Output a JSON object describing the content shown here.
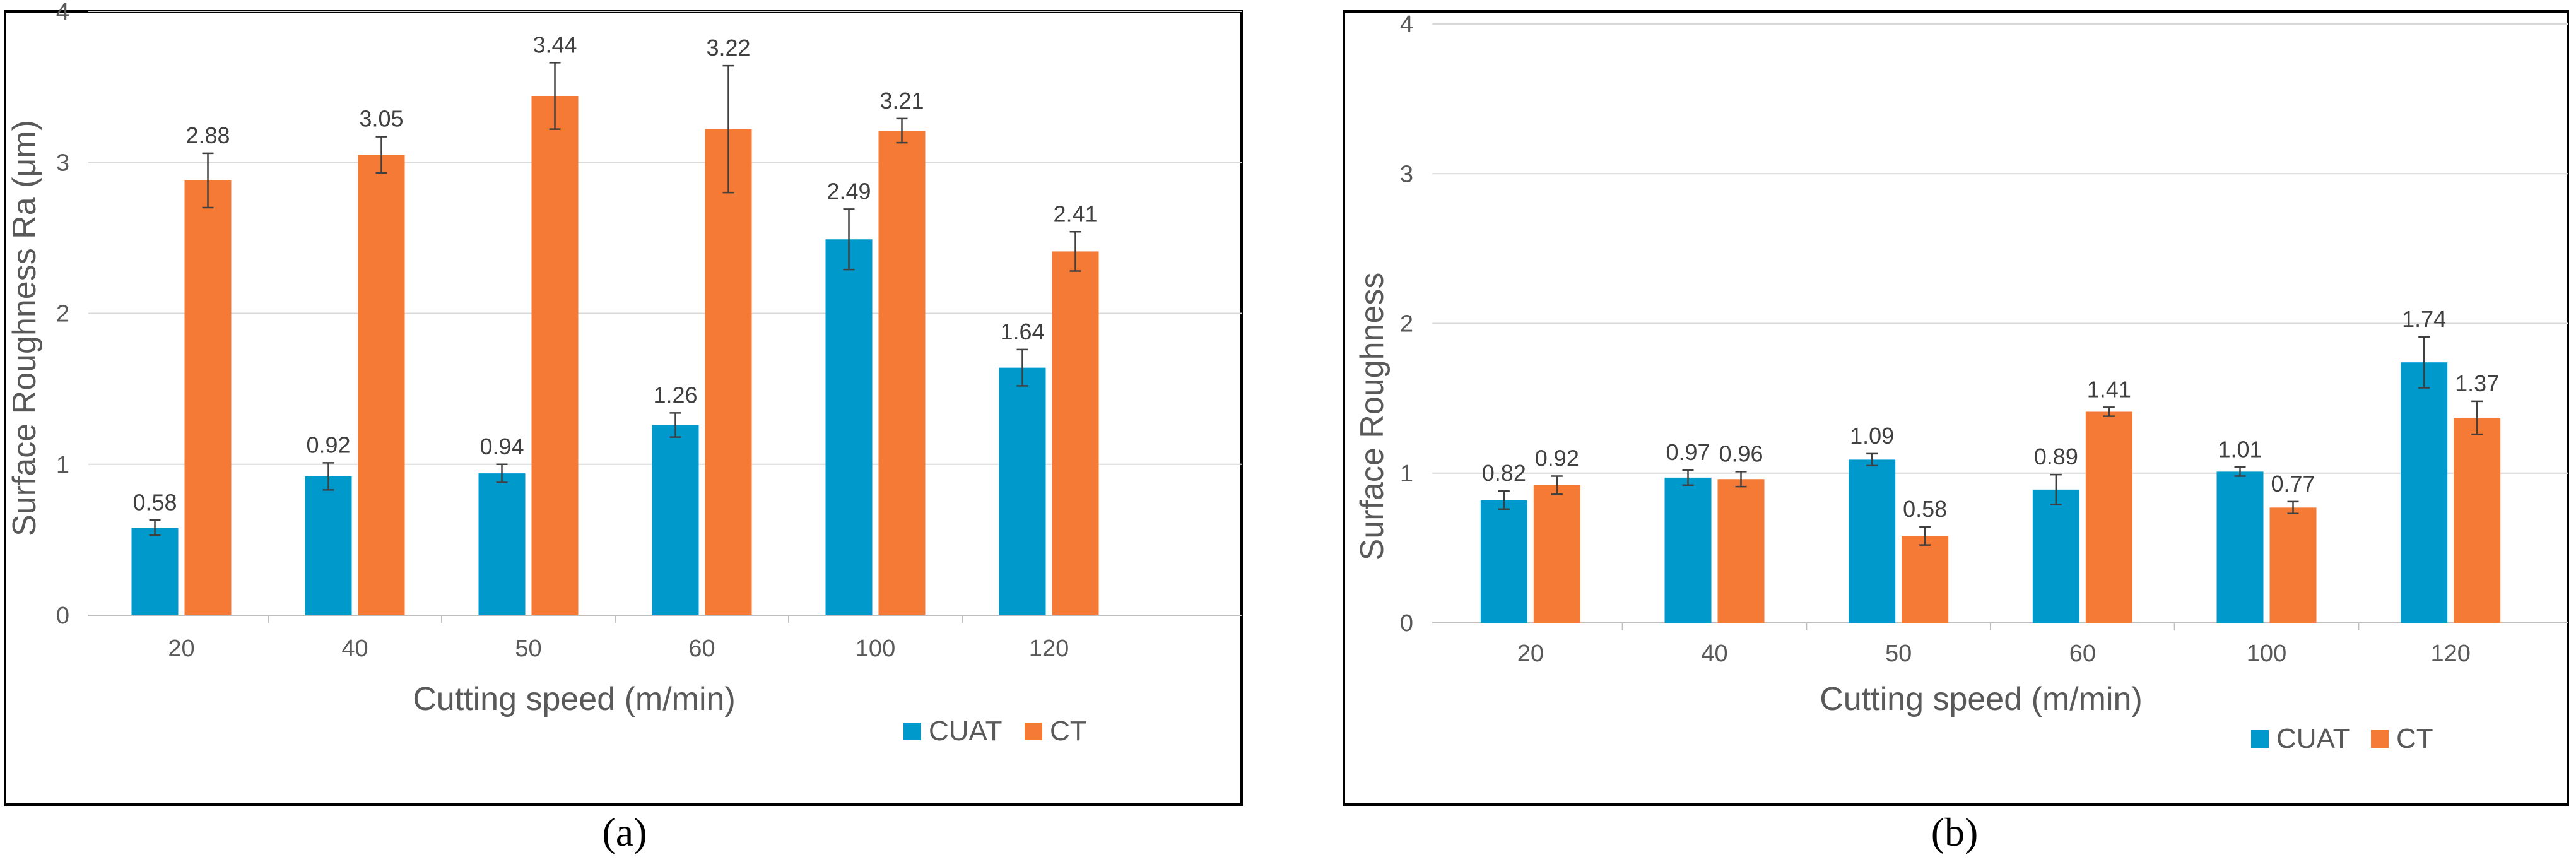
{
  "chart_data": [
    {
      "type": "bar",
      "panel_label": "(a)",
      "categories": [
        "20",
        "40",
        "50",
        "60",
        "100",
        "120"
      ],
      "series": [
        {
          "name": "CUAT",
          "color": "#0099CC",
          "values": [
            0.58,
            0.92,
            0.94,
            1.26,
            2.49,
            1.64
          ],
          "errors": [
            0.05,
            0.09,
            0.06,
            0.08,
            0.2,
            0.12
          ]
        },
        {
          "name": "CT",
          "color": "#F47A35",
          "values": [
            2.88,
            3.05,
            3.44,
            3.22,
            3.21,
            2.41
          ],
          "errors": [
            0.18,
            0.12,
            0.22,
            0.42,
            0.08,
            0.13
          ]
        }
      ],
      "xlabel": "Cutting speed (m/min)",
      "ylabel": "Surface Roughness Ra (μm)",
      "ylim": [
        0,
        4
      ],
      "yticks": [
        "0",
        "1",
        "2",
        "3",
        "4"
      ],
      "grid": true,
      "legend": "bottom-right"
    },
    {
      "type": "bar",
      "panel_label": "(b)",
      "categories": [
        "20",
        "40",
        "50",
        "60",
        "100",
        "120"
      ],
      "series": [
        {
          "name": "CUAT",
          "color": "#0099CC",
          "values": [
            0.82,
            0.97,
            1.09,
            0.89,
            1.01,
            1.74
          ],
          "errors": [
            0.06,
            0.05,
            0.04,
            0.1,
            0.03,
            0.17
          ]
        },
        {
          "name": "CT",
          "color": "#F47A35",
          "values": [
            0.92,
            0.96,
            0.58,
            1.41,
            0.77,
            1.37
          ],
          "errors": [
            0.06,
            0.05,
            0.06,
            0.03,
            0.04,
            0.11
          ]
        }
      ],
      "xlabel": "Cutting speed (m/min)",
      "ylabel": "Surface Roughness",
      "ylim": [
        0,
        4
      ],
      "yticks": [
        "0",
        "1",
        "2",
        "3",
        "4"
      ],
      "grid": true,
      "legend": "bottom-right"
    }
  ]
}
